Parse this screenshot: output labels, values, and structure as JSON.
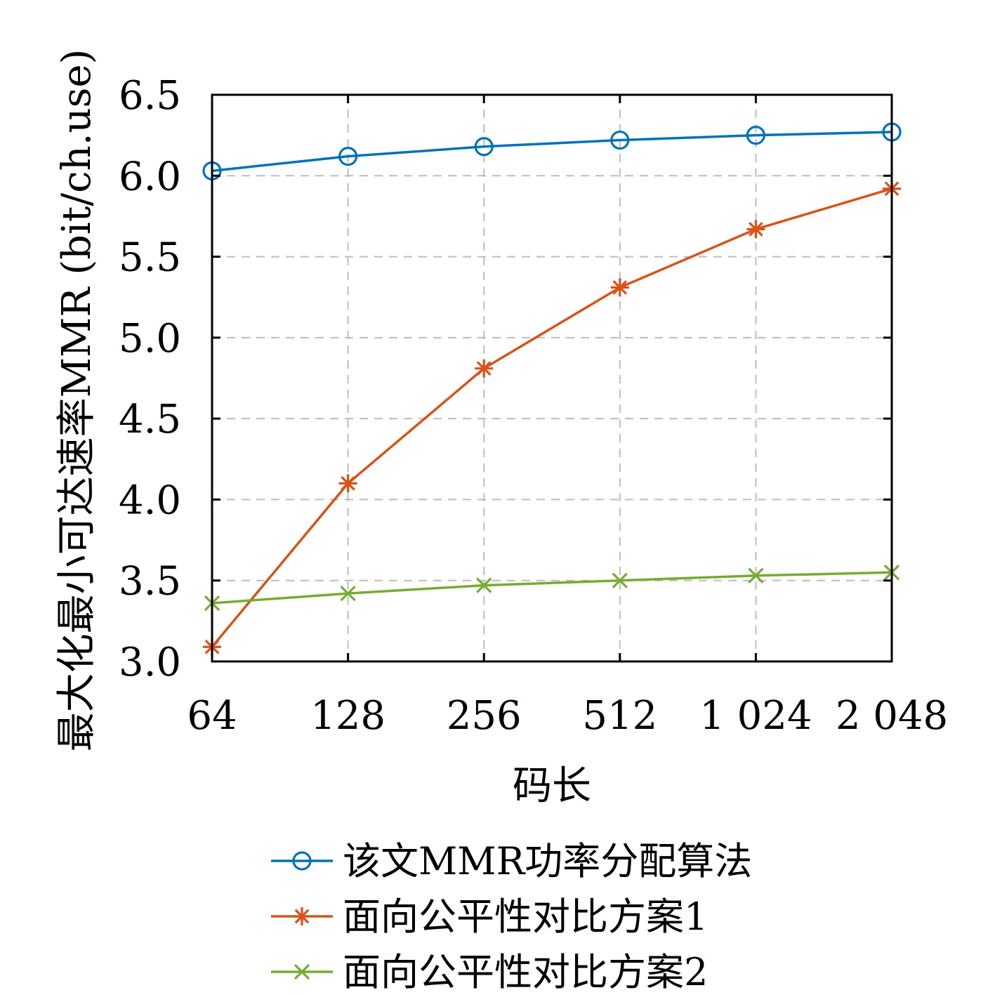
{
  "chart_data": {
    "type": "line",
    "title": "",
    "xlabel": "码长",
    "ylabel": "最大化最小可达速率MMR (bit/ch.use)",
    "categories": [
      "64",
      "128",
      "256",
      "512",
      "1 024",
      "2 048"
    ],
    "ylim": [
      3.0,
      6.5
    ],
    "yticks": [
      "3.0",
      "3.5",
      "4.0",
      "4.5",
      "5.0",
      "5.5",
      "6.0",
      "6.5"
    ],
    "grid": true,
    "legend_position": "bottom",
    "series": [
      {
        "name": "该文MMR功率分配算法",
        "marker": "circle",
        "color": "#0072BD",
        "values": [
          6.03,
          6.12,
          6.18,
          6.22,
          6.25,
          6.27
        ]
      },
      {
        "name": "面向公平性对比方案1",
        "marker": "asterisk",
        "color": "#D95319",
        "values": [
          3.09,
          4.1,
          4.81,
          5.31,
          5.67,
          5.92
        ]
      },
      {
        "name": "面向公平性对比方案2",
        "marker": "x",
        "color": "#77AC30",
        "values": [
          3.36,
          3.42,
          3.47,
          3.5,
          3.53,
          3.55
        ]
      }
    ]
  }
}
